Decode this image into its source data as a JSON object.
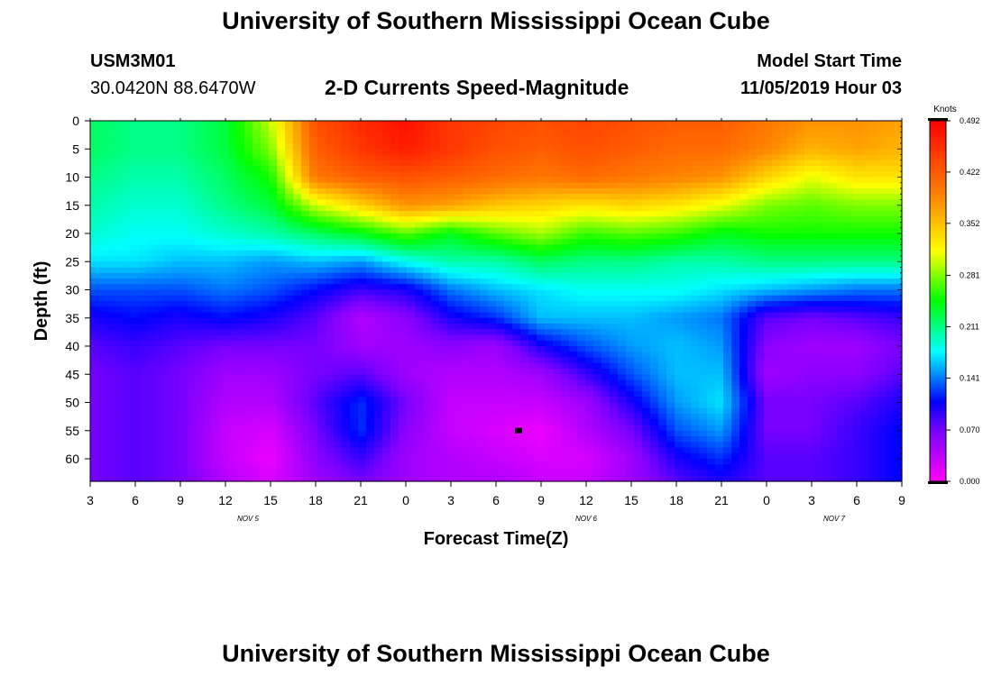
{
  "page": {
    "title_top": "University of Southern Mississippi Ocean Cube",
    "title_bottom": "University of Southern Mississippi Ocean Cube",
    "station_id": "USM3M01",
    "location": "30.0420N 88.6470W",
    "plot_title": "2-D Currents Speed-Magnitude",
    "model_label": "Model Start Time",
    "model_time": "11/05/2019 Hour 03"
  },
  "chart_data": {
    "type": "heatmap",
    "title": "2-D Currents Speed-Magnitude",
    "xlabel": "Forecast Time(Z)",
    "ylabel": "Depth (ft)",
    "x_ticks": [
      "3",
      "6",
      "9",
      "12",
      "15",
      "18",
      "21",
      "0",
      "3",
      "6",
      "9",
      "12",
      "15",
      "18",
      "21",
      "0",
      "3",
      "6",
      "9"
    ],
    "x_hours": [
      0,
      3,
      6,
      9,
      12,
      15,
      18,
      21,
      24,
      27,
      30,
      33,
      36,
      39,
      42,
      45,
      48,
      51,
      54
    ],
    "date_labels": [
      {
        "text": "NOV 5",
        "hour": 10.5
      },
      {
        "text": "NOV 6",
        "hour": 33
      },
      {
        "text": "NOV 7",
        "hour": 49.5
      }
    ],
    "y_ticks": [
      "0",
      "5",
      "10",
      "15",
      "20",
      "25",
      "30",
      "35",
      "40",
      "45",
      "50",
      "55",
      "60"
    ],
    "y_values": [
      0,
      5,
      10,
      15,
      20,
      25,
      30,
      35,
      40,
      45,
      50,
      55,
      60
    ],
    "xlim": [
      0,
      54
    ],
    "ylim": [
      0,
      64
    ],
    "colorbar": {
      "label": "Knots",
      "ticks": [
        "0.492",
        "0.422",
        "0.352",
        "0.281",
        "0.211",
        "0.141",
        "0.070",
        "0.000"
      ],
      "min": 0.0,
      "max": 0.492
    },
    "grid_hours": [
      0,
      3,
      6,
      9,
      12,
      15,
      18,
      21,
      24,
      27,
      30,
      33,
      36,
      39,
      42,
      45,
      48,
      51,
      54
    ],
    "grid_depths": [
      0,
      5,
      10,
      15,
      20,
      25,
      30,
      35,
      40,
      45,
      50,
      55,
      60,
      64
    ],
    "speed_knots": [
      [
        0.22,
        0.21,
        0.21,
        0.23,
        0.3,
        0.43,
        0.46,
        0.48,
        0.45,
        0.44,
        0.43,
        0.44,
        0.43,
        0.42,
        0.42,
        0.4,
        0.38,
        0.38,
        0.37
      ],
      [
        0.22,
        0.21,
        0.21,
        0.23,
        0.28,
        0.42,
        0.45,
        0.47,
        0.45,
        0.43,
        0.42,
        0.43,
        0.42,
        0.41,
        0.41,
        0.39,
        0.36,
        0.37,
        0.36
      ],
      [
        0.21,
        0.2,
        0.2,
        0.22,
        0.25,
        0.4,
        0.42,
        0.43,
        0.42,
        0.41,
        0.4,
        0.41,
        0.4,
        0.39,
        0.38,
        0.34,
        0.31,
        0.33,
        0.33
      ],
      [
        0.2,
        0.19,
        0.19,
        0.21,
        0.23,
        0.3,
        0.34,
        0.38,
        0.37,
        0.35,
        0.34,
        0.33,
        0.34,
        0.33,
        0.31,
        0.28,
        0.27,
        0.28,
        0.28
      ],
      [
        0.19,
        0.18,
        0.18,
        0.19,
        0.2,
        0.22,
        0.24,
        0.27,
        0.24,
        0.27,
        0.29,
        0.26,
        0.27,
        0.26,
        0.24,
        0.25,
        0.25,
        0.25,
        0.25
      ],
      [
        0.17,
        0.17,
        0.16,
        0.16,
        0.15,
        0.16,
        0.15,
        0.18,
        0.2,
        0.2,
        0.22,
        0.21,
        0.21,
        0.2,
        0.2,
        0.21,
        0.21,
        0.21,
        0.21
      ],
      [
        0.13,
        0.13,
        0.13,
        0.14,
        0.13,
        0.11,
        0.09,
        0.1,
        0.14,
        0.16,
        0.17,
        0.18,
        0.18,
        0.18,
        0.17,
        0.16,
        0.15,
        0.14,
        0.14
      ],
      [
        0.1,
        0.11,
        0.1,
        0.11,
        0.1,
        0.08,
        0.04,
        0.06,
        0.1,
        0.12,
        0.16,
        0.16,
        0.16,
        0.15,
        0.14,
        0.08,
        0.07,
        0.08,
        0.09
      ],
      [
        0.08,
        0.09,
        0.08,
        0.07,
        0.07,
        0.07,
        0.05,
        0.05,
        0.06,
        0.05,
        0.1,
        0.13,
        0.15,
        0.16,
        0.15,
        0.06,
        0.05,
        0.05,
        0.07
      ],
      [
        0.07,
        0.08,
        0.07,
        0.05,
        0.05,
        0.07,
        0.08,
        0.05,
        0.04,
        0.04,
        0.05,
        0.09,
        0.13,
        0.16,
        0.16,
        0.05,
        0.06,
        0.06,
        0.08
      ],
      [
        0.07,
        0.08,
        0.07,
        0.04,
        0.04,
        0.08,
        0.12,
        0.07,
        0.03,
        0.03,
        0.03,
        0.05,
        0.1,
        0.15,
        0.17,
        0.07,
        0.07,
        0.08,
        0.1
      ],
      [
        0.07,
        0.08,
        0.07,
        0.03,
        0.02,
        0.07,
        0.12,
        0.06,
        0.03,
        0.02,
        0.01,
        0.04,
        0.07,
        0.13,
        0.15,
        0.07,
        0.07,
        0.09,
        0.11
      ],
      [
        0.07,
        0.08,
        0.07,
        0.03,
        0.01,
        0.06,
        0.09,
        0.05,
        0.04,
        0.03,
        0.02,
        0.02,
        0.05,
        0.1,
        0.12,
        0.08,
        0.08,
        0.09,
        0.11
      ],
      [
        0.07,
        0.08,
        0.07,
        0.04,
        0.02,
        0.05,
        0.07,
        0.05,
        0.04,
        0.04,
        0.03,
        0.03,
        0.05,
        0.08,
        0.1,
        0.08,
        0.08,
        0.09,
        0.11
      ]
    ],
    "marker": {
      "hour": 28.5,
      "depth": 55
    }
  },
  "colors": {
    "background": "#ffffff",
    "axis": "#000000",
    "marker": "#000000"
  }
}
